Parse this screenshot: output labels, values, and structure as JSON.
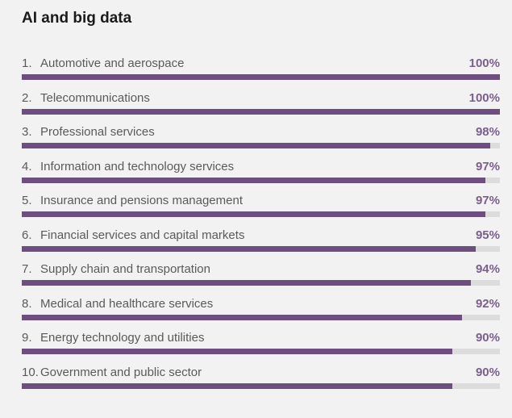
{
  "chart_data": {
    "type": "bar",
    "title": "AI and big data",
    "xlim": [
      0,
      100
    ],
    "bar_color": "#6e4e7e",
    "track_color": "#dcdcdc",
    "value_color": "#7a5e8c",
    "categories": [
      "Automotive and aerospace",
      "Telecommunications",
      "Professional services",
      "Information and technology services",
      "Insurance and pensions management",
      "Financial services and capital markets",
      "Supply chain and transportation",
      "Medical and healthcare services",
      "Energy technology and utilities",
      "Government and public sector"
    ],
    "ranks": [
      "1.",
      "2.",
      "3.",
      "4.",
      "5.",
      "6.",
      "7.",
      "8.",
      "9.",
      "10."
    ],
    "values": [
      100,
      100,
      98,
      97,
      97,
      95,
      94,
      92,
      90,
      90
    ],
    "value_labels": [
      "100%",
      "100%",
      "98%",
      "97%",
      "97%",
      "95%",
      "94%",
      "92%",
      "90%",
      "90%"
    ]
  }
}
